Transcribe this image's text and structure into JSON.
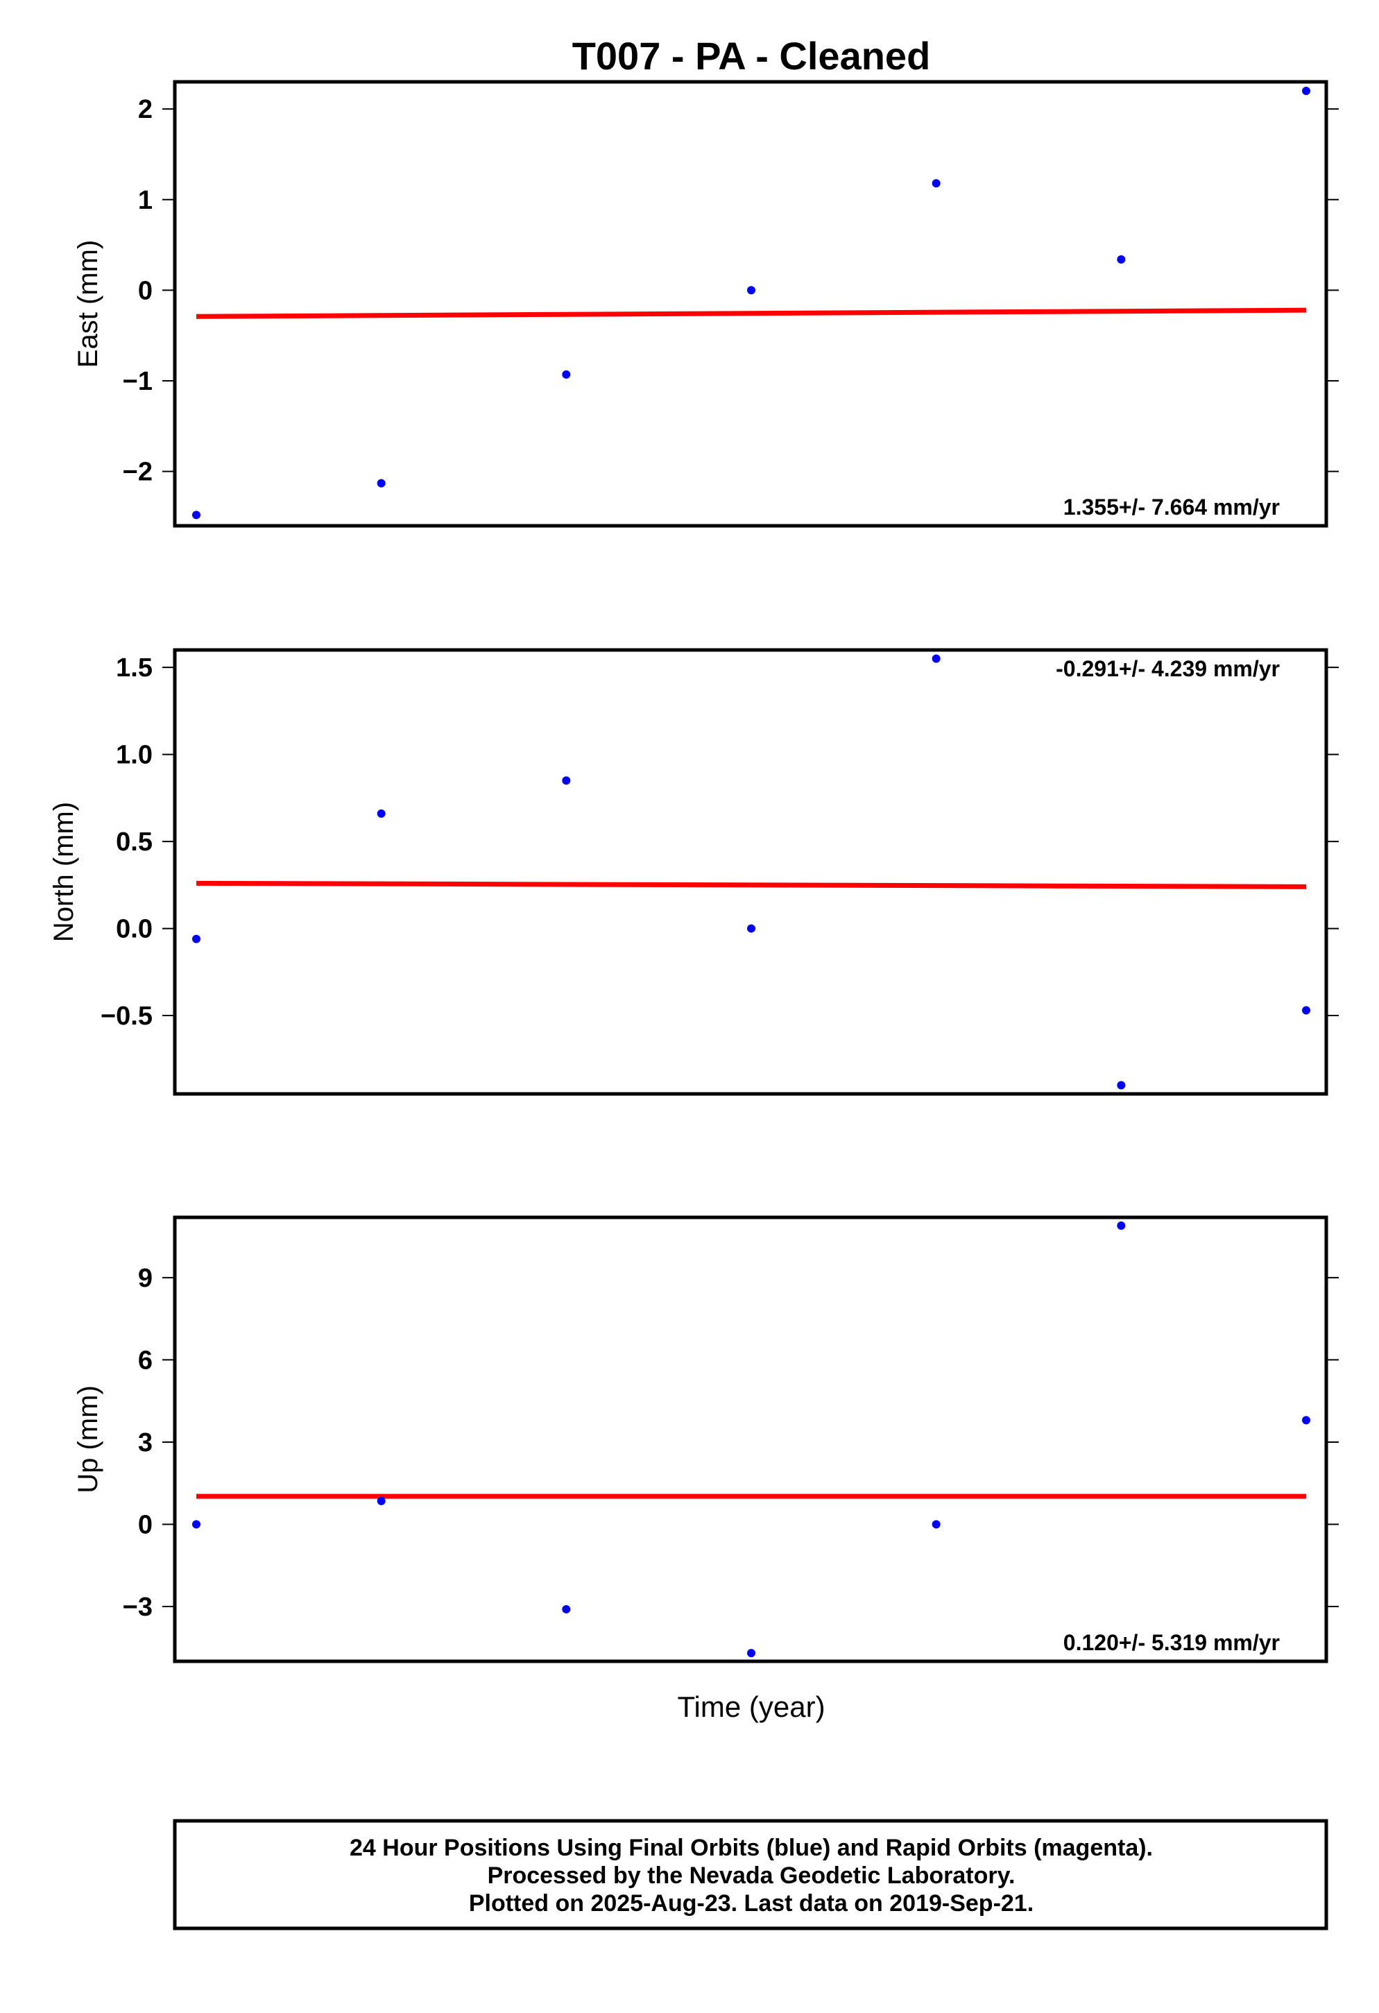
{
  "title": "T007  - PA - Cleaned",
  "colors": {
    "points": "#0000ff",
    "trend": "#ff0000",
    "frame": "#000000"
  },
  "chart_data": {
    "type": "scatter",
    "x": [
      0,
      1,
      2,
      3,
      4,
      5,
      6
    ],
    "xlabel": "Time (year)",
    "grid": false,
    "panels": [
      {
        "id": "east",
        "ylabel": "East (mm)",
        "ylim": [
          -2.6,
          2.3
        ],
        "yticks": [
          2,
          1,
          0,
          -1,
          -2
        ],
        "ytick_labels": [
          "2",
          "1",
          "0",
          "−1",
          "−2"
        ],
        "values": [
          -2.48,
          -2.13,
          -0.93,
          0.0,
          1.18,
          0.34,
          2.2
        ],
        "trend": [
          -0.29,
          -0.22
        ],
        "rate_label": "1.355+/- 7.664 mm/yr",
        "rate_position": "bottom-right"
      },
      {
        "id": "north",
        "ylabel": "North (mm)",
        "ylim": [
          -0.95,
          1.6
        ],
        "yticks": [
          1.5,
          1.0,
          0.5,
          0.0,
          -0.5
        ],
        "ytick_labels": [
          "1.5",
          "1.0",
          "0.5",
          "0.0",
          "−0.5"
        ],
        "values": [
          -0.06,
          0.66,
          0.85,
          0.0,
          1.55,
          -0.9,
          -0.47
        ],
        "trend": [
          0.26,
          0.24
        ],
        "rate_label": "-0.291+/- 4.239 mm/yr",
        "rate_position": "top-right"
      },
      {
        "id": "up",
        "ylabel": "Up (mm)",
        "ylim": [
          -5.0,
          11.2
        ],
        "yticks": [
          9,
          6,
          3,
          0,
          -3
        ],
        "ytick_labels": [
          "9",
          "6",
          "3",
          "0",
          "−3"
        ],
        "values": [
          0.0,
          0.85,
          -3.1,
          -4.7,
          0.0,
          10.9,
          3.8
        ],
        "trend": [
          1.02,
          1.02
        ],
        "rate_label": "0.120+/- 5.319 mm/yr",
        "rate_position": "bottom-right"
      }
    ]
  },
  "footer": {
    "line1": "24 Hour Positions Using Final Orbits (blue) and Rapid Orbits (magenta).",
    "line2": "Processed by the Nevada Geodetic Laboratory.",
    "line3": "Plotted on 2025-Aug-23. Last data on 2019-Sep-21."
  }
}
